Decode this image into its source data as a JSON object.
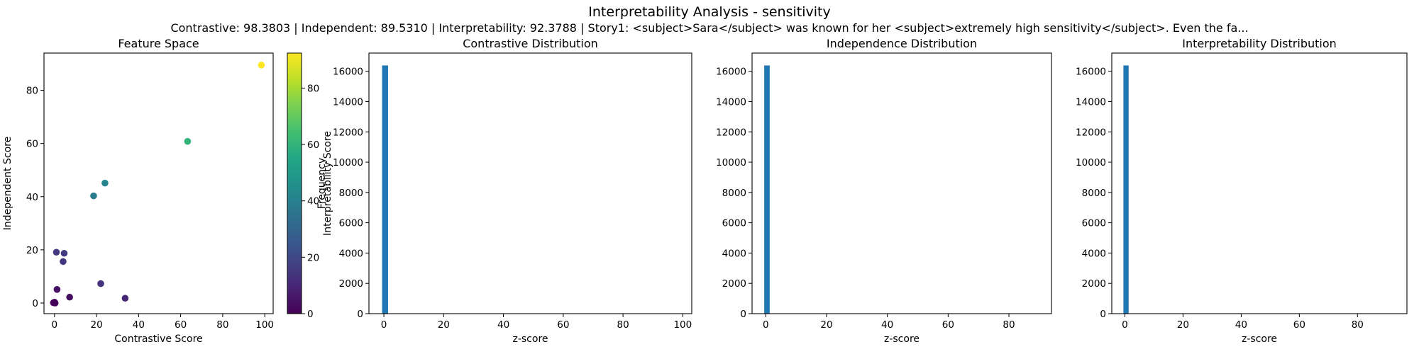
{
  "figure": {
    "suptitle": "Interpretability Analysis - sensitivity",
    "subtitle": "Contrastive: 98.3803 | Independent: 89.5310 | Interpretability: 92.3788 | Story1: <subject>Sara</subject> was known for her <subject>extremely high sensitivity</subject>. Even the fa..."
  },
  "chart_data": [
    {
      "type": "scatter",
      "title": "Feature Space",
      "xlabel": "Contrastive Score",
      "ylabel": "Independent Score",
      "xlim": [
        -5,
        104
      ],
      "ylim": [
        -4,
        94
      ],
      "xticks": [
        0,
        20,
        40,
        60,
        80,
        100
      ],
      "yticks": [
        0,
        20,
        40,
        60,
        80
      ],
      "points": [
        {
          "x": 98.4,
          "y": 89.5,
          "c": 92.4
        },
        {
          "x": 63.3,
          "y": 60.8,
          "c": 60.0
        },
        {
          "x": 24.0,
          "y": 45.1,
          "c": 42.0
        },
        {
          "x": 18.6,
          "y": 40.3,
          "c": 38.0
        },
        {
          "x": 0.9,
          "y": 19.1,
          "c": 15.0
        },
        {
          "x": 4.6,
          "y": 18.7,
          "c": 16.0
        },
        {
          "x": 4.1,
          "y": 15.6,
          "c": 15.0
        },
        {
          "x": 22.0,
          "y": 7.3,
          "c": 13.0
        },
        {
          "x": 33.6,
          "y": 1.8,
          "c": 10.0
        },
        {
          "x": 7.2,
          "y": 2.2,
          "c": 4.0
        },
        {
          "x": 1.2,
          "y": 5.1,
          "c": 4.0
        },
        {
          "x": 0.0,
          "y": 0.3,
          "c": 1.0
        },
        {
          "x": 0.3,
          "y": 0.0,
          "c": 0.5
        },
        {
          "x": -0.5,
          "y": 0.1,
          "c": 0.5
        }
      ],
      "colorbar": {
        "label": "Interpretability Score",
        "range": [
          0,
          92.4
        ],
        "ticks": [
          0,
          20,
          40,
          60,
          80
        ],
        "colormap": "viridis"
      }
    },
    {
      "type": "bar",
      "title": "Contrastive Distribution",
      "xlabel": "z-score",
      "ylabel": "Frequency",
      "xlim": [
        -5,
        103
      ],
      "ylim": [
        0,
        17200
      ],
      "xticks": [
        0,
        20,
        40,
        60,
        80,
        100
      ],
      "yticks": [
        0,
        2000,
        4000,
        6000,
        8000,
        10000,
        12000,
        14000,
        16000
      ],
      "bins": [
        {
          "x0": -0.6,
          "x1": 1.4,
          "count": 16384
        }
      ],
      "color": "#1f77b4"
    },
    {
      "type": "bar",
      "title": "Independence Distribution",
      "xlabel": "z-score",
      "ylabel": "",
      "xlim": [
        -4.5,
        94
      ],
      "ylim": [
        0,
        17200
      ],
      "xticks": [
        0,
        20,
        40,
        60,
        80
      ],
      "yticks": [
        0,
        2000,
        4000,
        6000,
        8000,
        10000,
        12000,
        14000,
        16000
      ],
      "bins": [
        {
          "x0": -0.5,
          "x1": 1.3,
          "count": 16384
        }
      ],
      "color": "#1f77b4"
    },
    {
      "type": "bar",
      "title": "Interpretability Distribution",
      "xlabel": "z-score",
      "ylabel": "",
      "xlim": [
        -4.5,
        97
      ],
      "ylim": [
        0,
        17200
      ],
      "xticks": [
        0,
        20,
        40,
        60,
        80
      ],
      "yticks": [
        0,
        2000,
        4000,
        6000,
        8000,
        10000,
        12000,
        14000,
        16000
      ],
      "bins": [
        {
          "x0": -0.5,
          "x1": 1.3,
          "count": 16384
        }
      ],
      "color": "#1f77b4"
    }
  ]
}
